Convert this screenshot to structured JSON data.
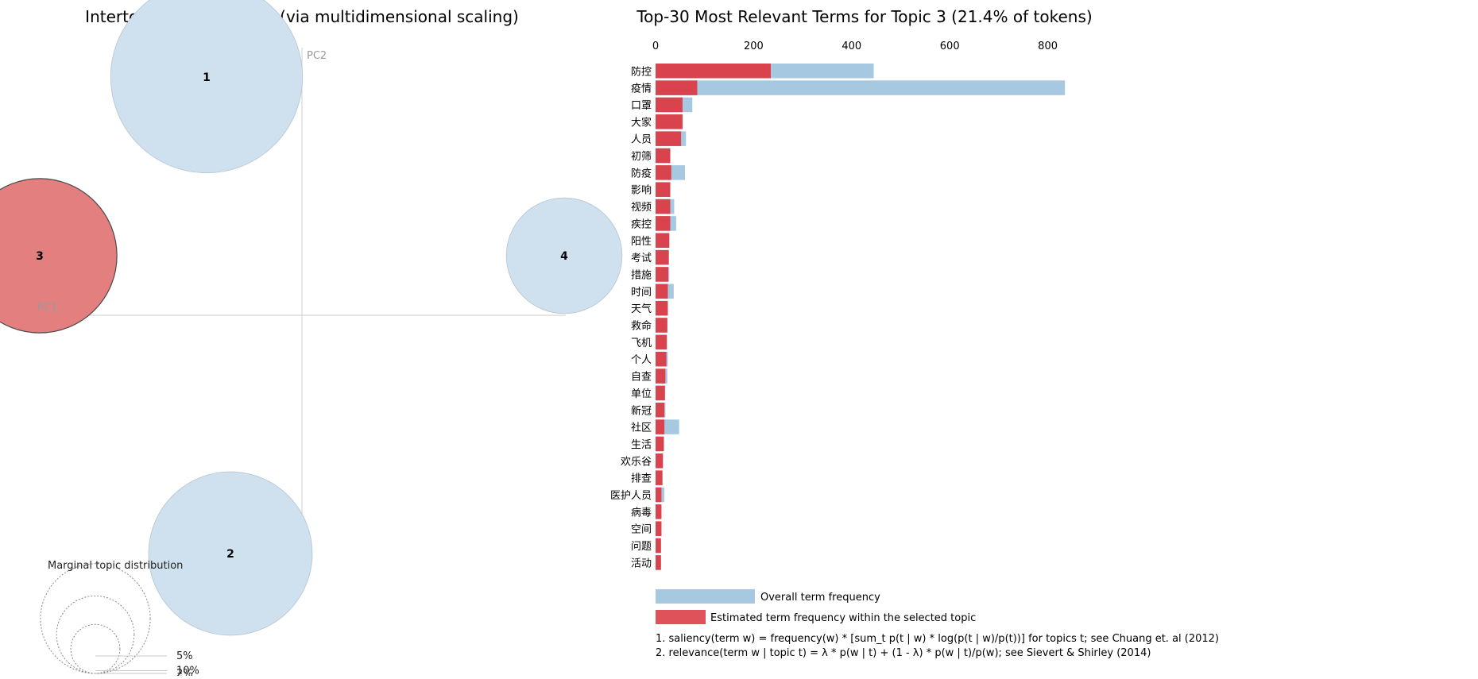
{
  "chart_data": [
    {
      "type": "scatter",
      "title": "Intertopic Distance Map (via multidimensional scaling)",
      "xlabel": "PC1",
      "ylabel": "PC2",
      "topics": [
        {
          "id": "1",
          "pc1": -0.08,
          "pc2": 0.2,
          "share": 0.33
        },
        {
          "id": "2",
          "pc1": -0.06,
          "pc2": -0.2,
          "share": 0.24
        },
        {
          "id": "3",
          "pc1": -0.22,
          "pc2": 0.05,
          "share": 0.214
        },
        {
          "id": "4",
          "pc1": 0.22,
          "pc2": 0.05,
          "share": 0.12
        }
      ],
      "selected_topic": "3",
      "xlim": [
        -0.25,
        0.25
      ],
      "ylim": [
        -0.25,
        0.25
      ],
      "legend": {
        "title": "Marginal topic distribution",
        "entries": [
          {
            "label": "2%",
            "share": 0.02
          },
          {
            "label": "5%",
            "share": 0.05
          },
          {
            "label": "10%",
            "share": 0.1
          }
        ]
      }
    },
    {
      "type": "bar",
      "orientation": "horizontal",
      "title": "Top-30 Most Relevant Terms for Topic 3 (21.4% of tokens)",
      "xlim": [
        0,
        840
      ],
      "xticks": [
        "0",
        "200",
        "400",
        "600",
        "800"
      ],
      "categories": [
        "防控",
        "疫情",
        "口罩",
        "大家",
        "人员",
        "初筛",
        "防疫",
        "影响",
        "视频",
        "疾控",
        "阳性",
        "考试",
        "措施",
        "时间",
        "天气",
        "救命",
        "飞机",
        "个人",
        "自查",
        "单位",
        "新冠",
        "社区",
        "生活",
        "欢乐谷",
        "排查",
        "医护人员",
        "病毒",
        "空间",
        "问题",
        "活动"
      ],
      "series": [
        {
          "name": "Overall term frequency",
          "color": "#a6c8e0",
          "values": [
            445,
            835,
            75,
            55,
            62,
            30,
            60,
            30,
            38,
            42,
            28,
            27,
            28,
            37,
            25,
            24,
            23,
            25,
            24,
            20,
            20,
            48,
            17,
            15,
            14,
            18,
            12,
            12,
            11,
            11
          ]
        },
        {
          "name": "Estimated term frequency within the selected topic",
          "color": "#d9434d",
          "values": [
            235,
            85,
            55,
            55,
            52,
            30,
            32,
            30,
            30,
            30,
            28,
            27,
            26,
            25,
            25,
            24,
            23,
            22,
            20,
            19,
            18,
            18,
            17,
            15,
            14,
            12,
            12,
            12,
            11,
            11
          ]
        }
      ],
      "footnotes": [
        "1. saliency(term w) = frequency(w) * [sum_t p(t | w) * log(p(t | w)/p(t))] for topics t; see Chuang et. al (2012)",
        "2. relevance(term w | topic t) = λ * p(w | t) + (1 - λ) * p(w | t)/p(w); see Sievert & Shirley (2014)"
      ]
    }
  ],
  "colors": {
    "unselected": "#cfe1ee",
    "selected": "#e47f80",
    "overall": "#a6c8e0",
    "topic": "#d9434d"
  }
}
